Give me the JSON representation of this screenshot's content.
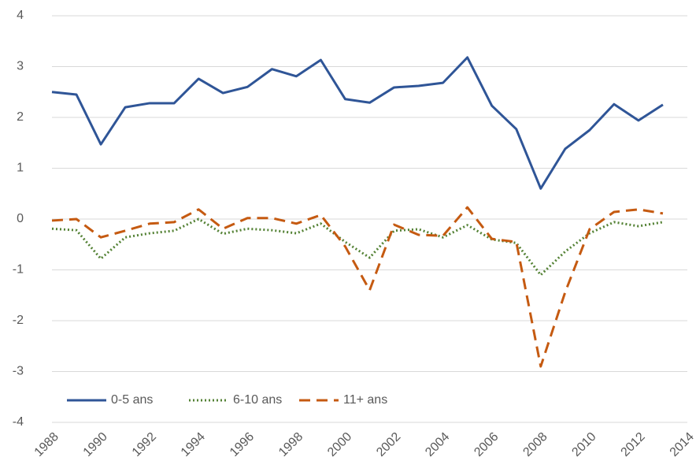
{
  "chart_data": {
    "type": "line",
    "x": [
      1988,
      1989,
      1990,
      1991,
      1992,
      1993,
      1994,
      1995,
      1996,
      1997,
      1998,
      1999,
      2000,
      2001,
      2002,
      2003,
      2004,
      2005,
      2006,
      2007,
      2008,
      2009,
      2010,
      2011,
      2012,
      2013
    ],
    "series": [
      {
        "name": "0-5 ans",
        "color": "#2f5597",
        "style": "solid",
        "values": [
          2.5,
          2.45,
          1.47,
          2.2,
          2.28,
          2.28,
          2.76,
          2.48,
          2.6,
          2.95,
          2.81,
          3.13,
          2.36,
          2.29,
          2.59,
          2.62,
          2.68,
          3.18,
          2.23,
          1.77,
          0.6,
          1.38,
          1.75,
          2.26,
          1.94,
          2.25
        ]
      },
      {
        "name": "6-10 ans",
        "color": "#548235",
        "style": "dotted",
        "values": [
          -0.19,
          -0.22,
          -0.78,
          -0.36,
          -0.28,
          -0.23,
          0.0,
          -0.29,
          -0.19,
          -0.22,
          -0.28,
          -0.09,
          -0.45,
          -0.76,
          -0.23,
          -0.2,
          -0.36,
          -0.12,
          -0.4,
          -0.47,
          -1.1,
          -0.64,
          -0.28,
          -0.06,
          -0.14,
          -0.06
        ]
      },
      {
        "name": "11+ ans",
        "color": "#c55a11",
        "style": "dashed",
        "values": [
          -0.03,
          0.0,
          -0.36,
          -0.23,
          -0.09,
          -0.06,
          0.19,
          -0.19,
          0.02,
          0.02,
          -0.09,
          0.08,
          -0.54,
          -1.4,
          -0.11,
          -0.31,
          -0.33,
          0.23,
          -0.39,
          -0.45,
          -2.9,
          -1.44,
          -0.2,
          0.14,
          0.19,
          0.11
        ]
      }
    ],
    "xlim": [
      1988,
      2014
    ],
    "xticks": [
      1988,
      1990,
      1992,
      1994,
      1996,
      1998,
      2000,
      2002,
      2004,
      2006,
      2008,
      2010,
      2012,
      2014
    ],
    "ylim": [
      -4,
      4
    ],
    "yticks": [
      -4,
      -3,
      -2,
      -1,
      0,
      1,
      2,
      3,
      4
    ],
    "grid": true,
    "legend": "bottom-left"
  }
}
